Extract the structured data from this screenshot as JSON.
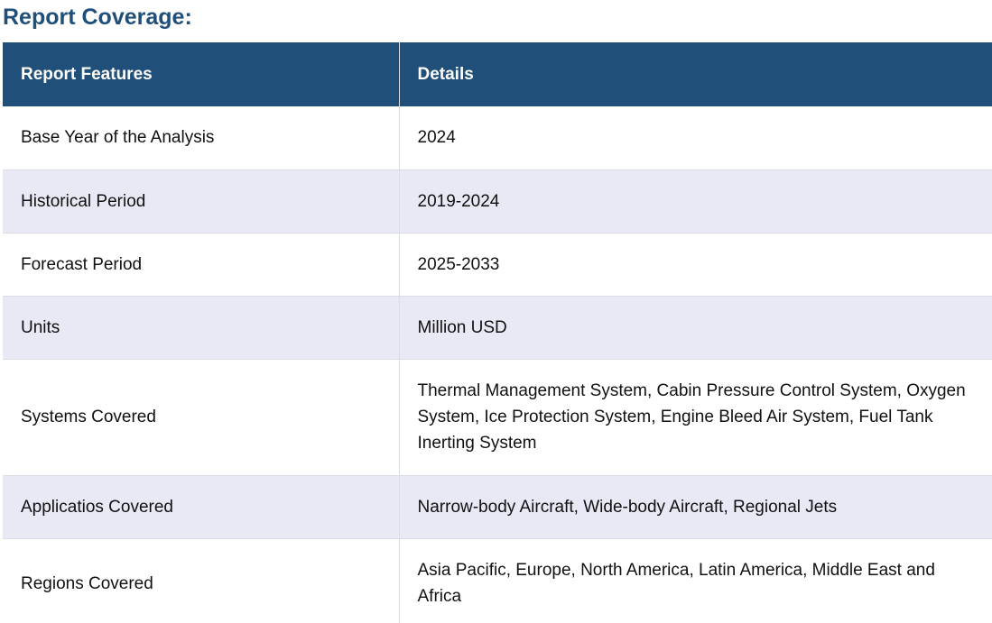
{
  "title": "Report Coverage:",
  "table": {
    "headers": [
      "Report Features",
      "Details"
    ],
    "rows": [
      {
        "feature": "Base Year of the Analysis",
        "details": "2024"
      },
      {
        "feature": "Historical Period",
        "details": "2019-2024"
      },
      {
        "feature": "Forecast Period",
        "details": "2025-2033"
      },
      {
        "feature": "Units",
        "details": "Million USD"
      },
      {
        "feature": "Systems Covered",
        "details": "Thermal Management System, Cabin Pressure Control System, Oxygen System, Ice Protection System, Engine Bleed Air System, Fuel Tank Inerting System"
      },
      {
        "feature": "Applicatios Covered",
        "details": "Narrow-body Aircraft, Wide-body Aircraft, Regional Jets"
      },
      {
        "feature": "Regions Covered",
        "details": "Asia Pacific, Europe, North America, Latin America, Middle East and Africa"
      }
    ]
  }
}
